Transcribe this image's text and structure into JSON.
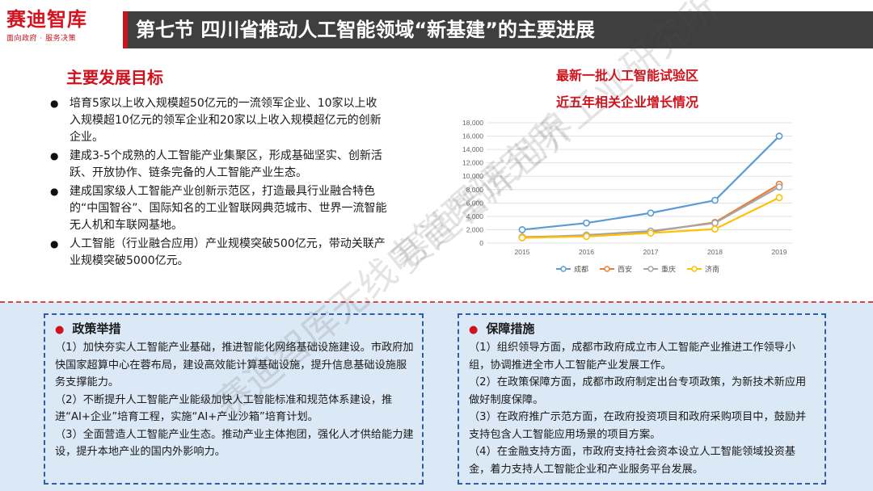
{
  "header": {
    "logo_main": "赛迪智库",
    "logo_sub": "面向政府 · 服务决策",
    "title": "第七节 四川省推动人工智能领域“新基建”的主要进展",
    "accent_color": "#c8161e"
  },
  "goals": {
    "title": "主要发展目标",
    "items": [
      "培育5家以上收入规模超50亿元的一流领军企业、10家以上收入规模超10亿元的领军企业和20家以上收入规模超亿元的创新企业。",
      "建成3-5个成熟的人工智能产业集聚区，形成基础坚实、创新活跃、开放协作、链条完备的人工智能产业生态。",
      "建成国家级人工智能产业创新示范区，打造最具行业融合特色的“中国智谷”、国际知名的工业智联网典范城市、世界一流智能无人机和车联网基地。",
      "人工智能（行业融合应用）产业规模突破500亿元，带动关联产业规模突破5000亿元。"
    ]
  },
  "chart": {
    "title_line1": "最新一批人工智能试验区",
    "title_line2": "近五年相关企业增长情况"
  },
  "chart_data": {
    "type": "line",
    "title": "最新一批人工智能试验区 近五年相关企业增长情况",
    "x": [
      "2015",
      "2016",
      "2017",
      "2018",
      "2019"
    ],
    "y_ticks": [
      "0",
      "2,000",
      "4,000",
      "6,000",
      "8,000",
      "10,000",
      "12,000",
      "14,000",
      "16,000",
      "18,000"
    ],
    "ylim": [
      0,
      18000
    ],
    "grid": true,
    "legend_position": "bottom",
    "series": [
      {
        "name": "成都",
        "color": "#5b9bd5",
        "values": [
          2000,
          3000,
          4500,
          6400,
          16000
        ]
      },
      {
        "name": "西安",
        "color": "#ed7d31",
        "values": [
          900,
          1100,
          1700,
          3100,
          8800
        ]
      },
      {
        "name": "重庆",
        "color": "#a5a5a5",
        "values": [
          800,
          1200,
          1800,
          3000,
          8400
        ]
      },
      {
        "name": "济南",
        "color": "#ffc000",
        "values": [
          800,
          1000,
          1500,
          2100,
          6800
        ]
      }
    ]
  },
  "policy": {
    "title": "政策举措",
    "paragraphs": [
      "（1）加快夯实人工智能产业基础，推进智能化网络基础设施建设。市政府加快国家超算中心在蓉布局，建设高效能计算基础设施，提升信息基础设施服务支撑能力。",
      "（2）不断提升人工智能产业能级加快人工智能标准和规范体系建设，推进“AI+企业”培育工程，实施“AI+产业沙箱”培育计划。",
      "（3）全面营造人工智能产业生态。推动产业主体抱团，强化人才供给能力建设，提升本地产业的国内外影响力。"
    ]
  },
  "guarantee": {
    "title": "保障措施",
    "paragraphs": [
      "（1）组织领导方面，成都市政府成立市人工智能产业推进工作领导小组，协调推进全市人工智能产业发展工作。",
      "（2）在政策保障方面，成都市政府制定出台专项政策，为新技术新应用做好制度保障。",
      "（3）在政府推广示范方面，在政府投资项目和政府采购项目中，鼓励并支持包含人工智能应用场景的项目方案。",
      "（4）在金融支持方面，市政府支持社会资本设立人工智能领域投资基金，着力支持人工智能企业和产业服务平台发展。"
    ]
  },
  "watermarks": [
    "赛迪智库世界工业研究所",
    "赛迪智库无线电管理研究所"
  ]
}
